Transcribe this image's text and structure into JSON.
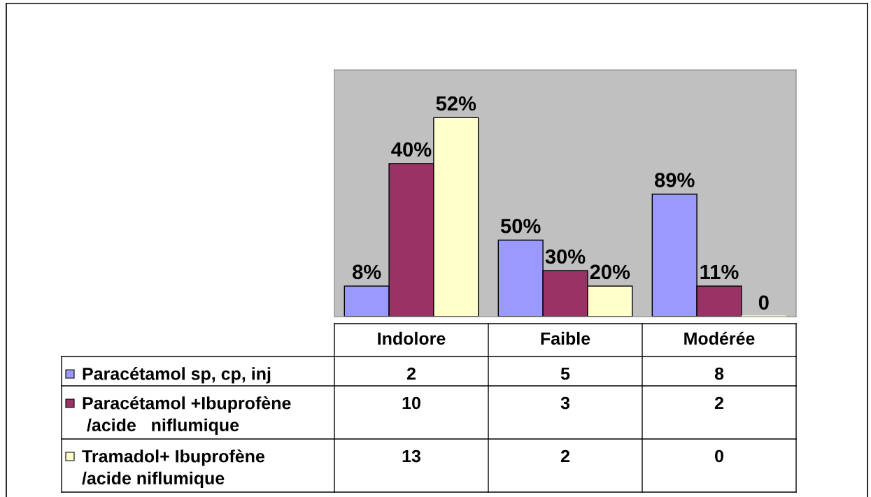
{
  "chart_data": {
    "type": "bar",
    "categories": [
      "Indolore",
      "Faible",
      "Modérée"
    ],
    "series": [
      {
        "name": "Paracétamol sp, cp, inj",
        "color": "#9999ff",
        "values": [
          2,
          5,
          8
        ]
      },
      {
        "name": "Paracétamol +Ibuprofène\n /acide   niflumique",
        "color": "#993366",
        "values": [
          10,
          3,
          2
        ]
      },
      {
        "name": "Tramadol+ Ibuprofène\n/acide niflumique",
        "color": "#ffffcc",
        "values": [
          13,
          2,
          0
        ]
      }
    ],
    "annotations": [
      "8%",
      "50%",
      "89%",
      "40%",
      "30%",
      "11%",
      "52%",
      "20%",
      "0"
    ],
    "data_labels": true,
    "legend": "bottom left"
  }
}
